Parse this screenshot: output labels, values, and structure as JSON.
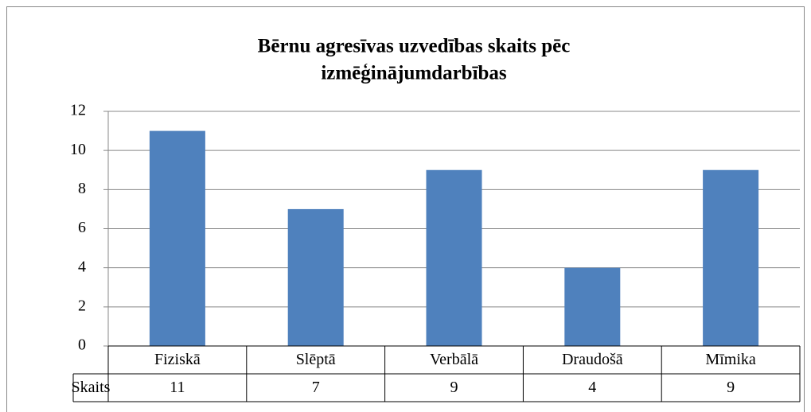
{
  "chart_data": {
    "type": "bar",
    "title": [
      "Bērnu agresīvas uzvedības skaits pēc",
      "izmēģinājumdarbības"
    ],
    "categories": [
      "Fiziskā",
      "Slēptā",
      "Verbālā",
      "Draudošā",
      "Mīmika"
    ],
    "series": [
      {
        "name": "Skaits",
        "color": "#4f81bd",
        "values": [
          11,
          7,
          9,
          4,
          9
        ]
      }
    ],
    "ylim": [
      0,
      12
    ],
    "yticks": [
      0,
      2,
      4,
      6,
      8,
      10,
      12
    ],
    "grid": true,
    "data_table": true
  }
}
